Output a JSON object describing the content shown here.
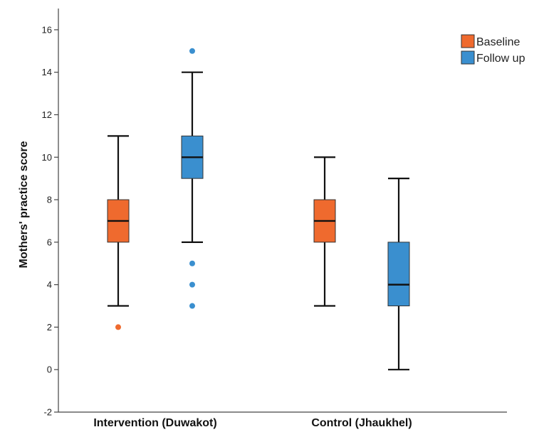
{
  "chart_data": {
    "type": "boxplot",
    "ylabel": "Mothers' practice score",
    "ylim": [
      -2,
      17
    ],
    "yticks": [
      -2,
      0,
      2,
      4,
      6,
      8,
      10,
      12,
      14,
      16
    ],
    "yticks_labels": [
      "-2",
      "0",
      "2",
      "4",
      "6",
      "8",
      "10",
      "12",
      "14",
      "16"
    ],
    "categories": [
      "Intervention (Duwakot)",
      "Control (Jhaukhel)"
    ],
    "series": [
      {
        "name": "Baseline",
        "color": "#ef6a2e",
        "boxes": [
          {
            "whisker_low": 3,
            "q1": 6,
            "median": 7,
            "q3": 8,
            "whisker_high": 11,
            "outliers": [
              2
            ]
          },
          {
            "whisker_low": 3,
            "q1": 6,
            "median": 7,
            "q3": 8,
            "whisker_high": 10,
            "outliers": []
          }
        ]
      },
      {
        "name": "Follow up",
        "color": "#3a8fcf",
        "boxes": [
          {
            "whisker_low": 6,
            "q1": 9,
            "median": 10,
            "q3": 11,
            "whisker_high": 14,
            "outliers": [
              15,
              5,
              4,
              3
            ]
          },
          {
            "whisker_low": 0,
            "q1": 3,
            "median": 4,
            "q3": 6,
            "whisker_high": 9,
            "outliers": []
          }
        ]
      }
    ],
    "legend_position": "top-right",
    "grid": false
  }
}
